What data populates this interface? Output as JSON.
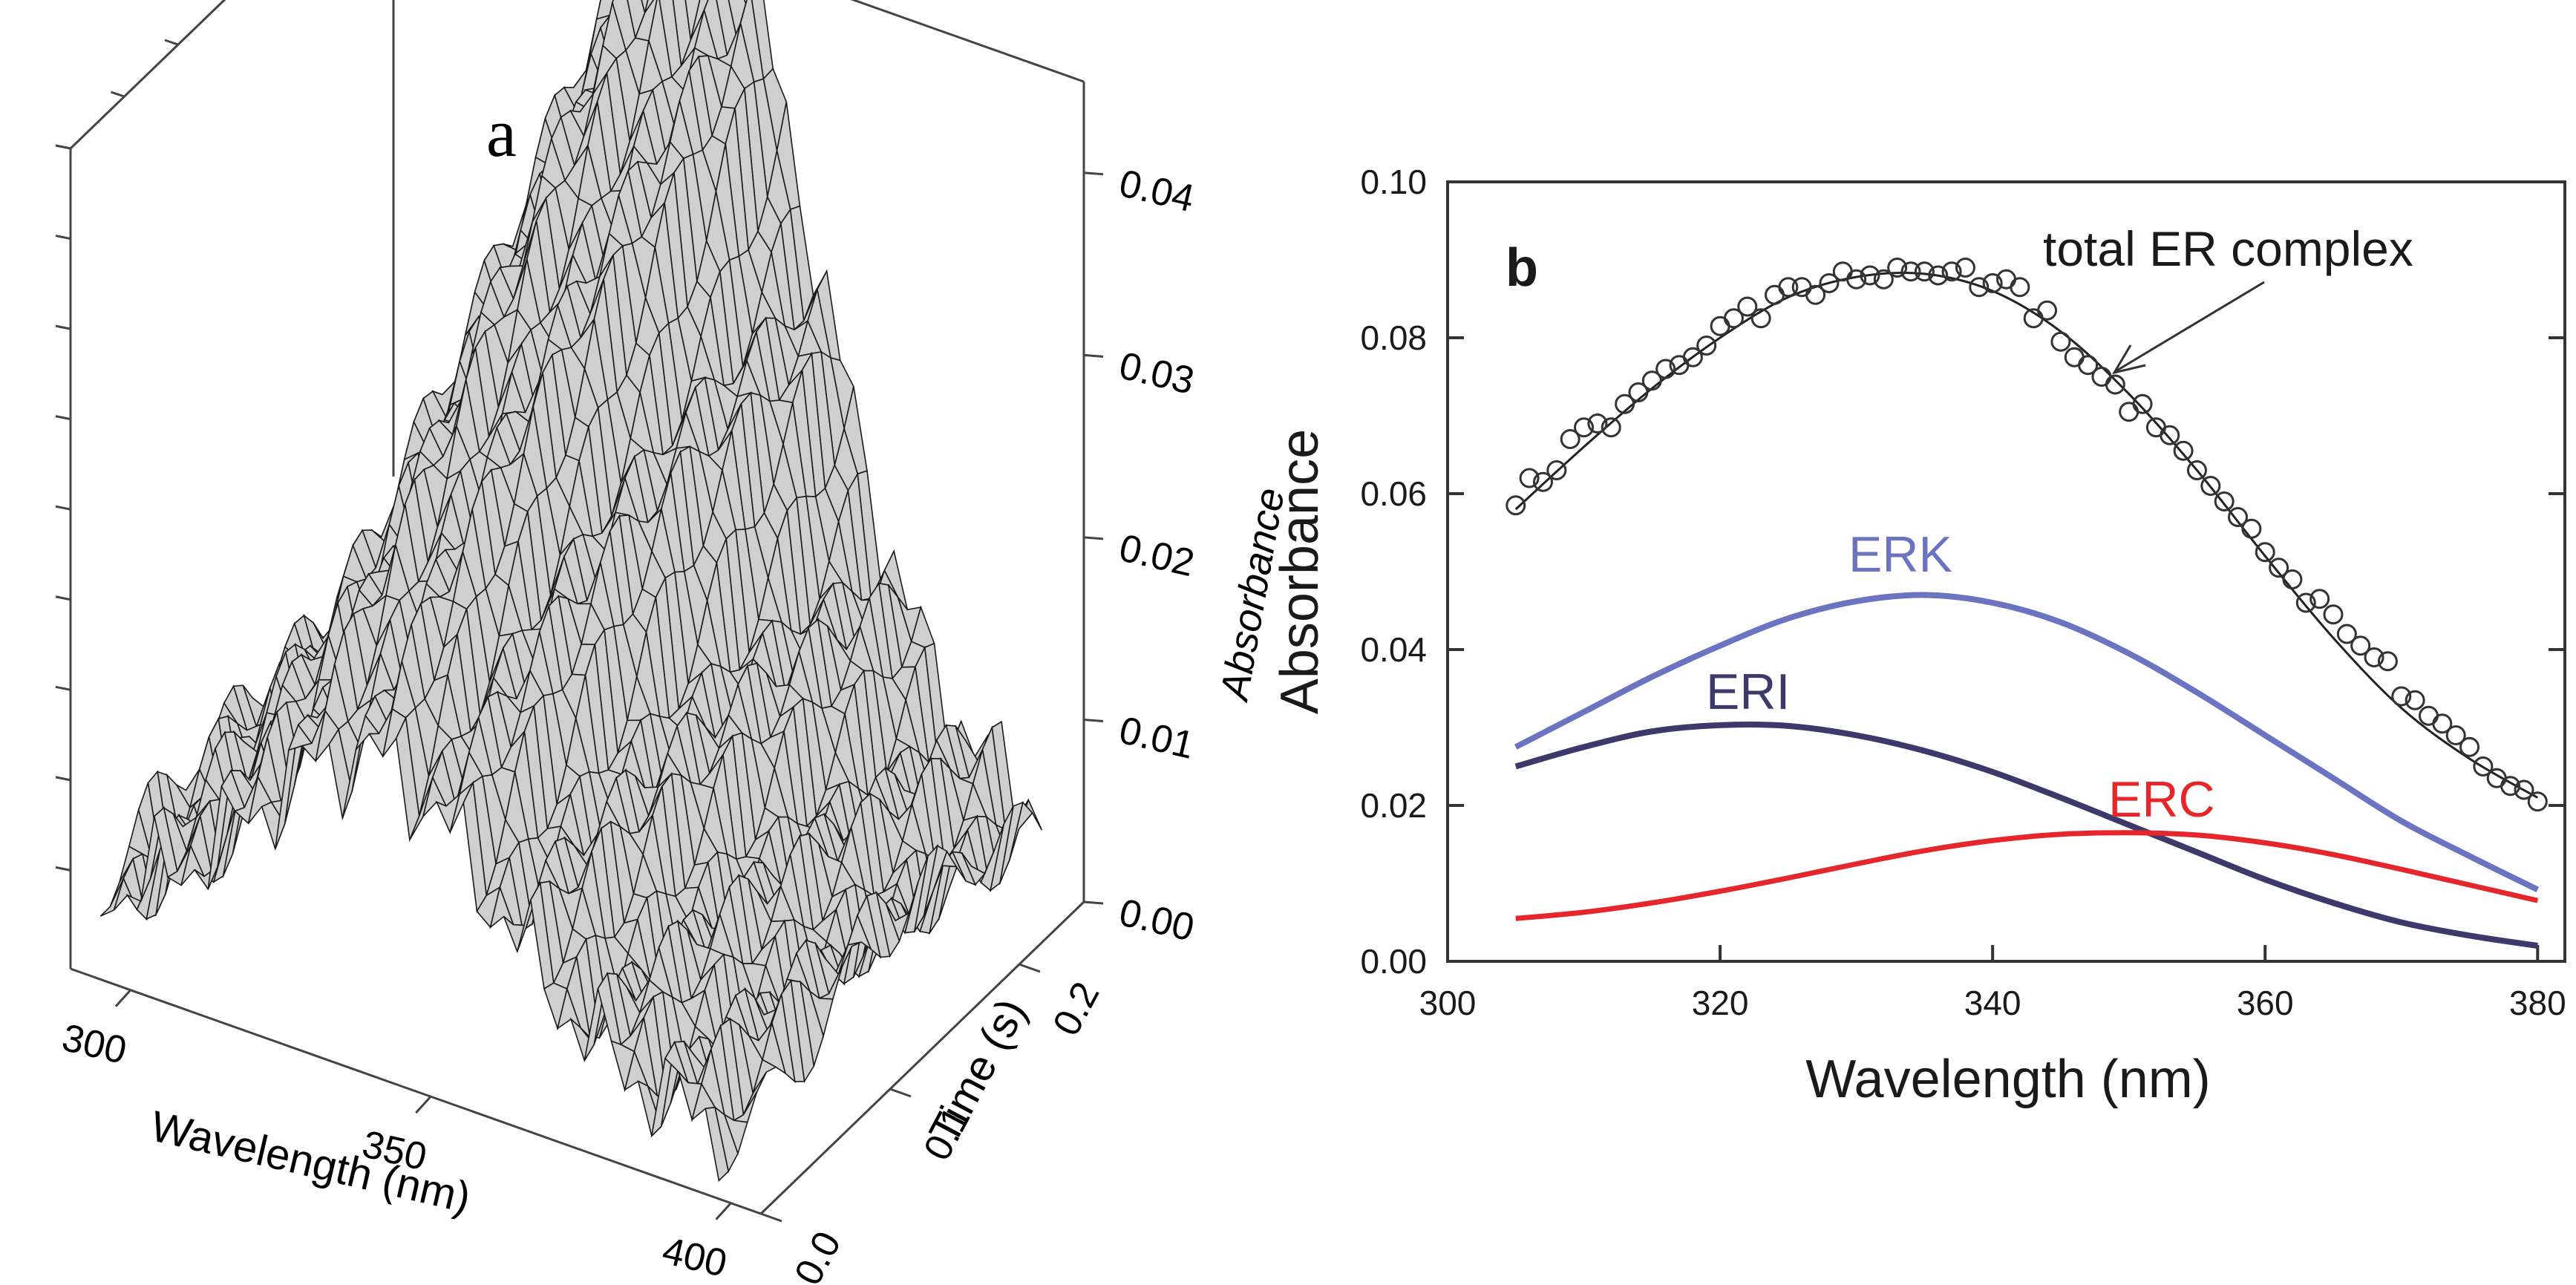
{
  "chart_data": [
    {
      "panel_label": "a",
      "type": "surface3d",
      "description_axes": {
        "xlabel": "Wavelength (nm)",
        "ylabel": "Time (s)",
        "zlabel": "Absorbance"
      },
      "x_ticks": [
        "300",
        "350",
        "400"
      ],
      "y_ticks": [
        "0.0",
        "0.1",
        "0.2"
      ],
      "z_ticks": [
        "0.00",
        "0.01",
        "0.02",
        "0.03",
        "0.04"
      ],
      "xlim": [
        290,
        405
      ],
      "ylim": [
        0,
        0.25
      ],
      "zlim": [
        0,
        0.045
      ],
      "surface": {
        "wavelengths": [
          295,
          305,
          315,
          325,
          335,
          345,
          355,
          365,
          375,
          385,
          395
        ],
        "times": [
          0.0,
          0.02,
          0.04,
          0.06,
          0.08,
          0.1,
          0.12,
          0.14,
          0.16,
          0.18,
          0.2,
          0.22,
          0.24
        ],
        "peak_absorbance": [
          0.012,
          0.018,
          0.025,
          0.031,
          0.038,
          0.044,
          0.043,
          0.036,
          0.027,
          0.018,
          0.01
        ]
      }
    },
    {
      "panel_label": "b",
      "type": "line",
      "xlabel": "Wavelength (nm)",
      "ylabel": "Absorbance",
      "xlim": [
        300,
        382
      ],
      "ylim": [
        0,
        0.1
      ],
      "x_ticks": [
        300,
        320,
        340,
        360,
        380
      ],
      "y_ticks": [
        0.0,
        0.02,
        0.04,
        0.06,
        0.08,
        0.1
      ],
      "y_tick_labels": [
        "0.00",
        "0.02",
        "0.04",
        "0.06",
        "0.08",
        "0.10"
      ],
      "annotation": "total ER complex",
      "series": [
        {
          "name": "ERK",
          "color": "#6b74c0",
          "x": [
            305,
            310,
            315,
            320,
            325,
            330,
            335,
            340,
            345,
            350,
            355,
            360,
            365,
            370,
            375,
            380
          ],
          "values": [
            0.0275,
            0.032,
            0.0365,
            0.0405,
            0.044,
            0.0462,
            0.047,
            0.046,
            0.0435,
            0.0395,
            0.0345,
            0.029,
            0.0235,
            0.018,
            0.0135,
            0.0092
          ]
        },
        {
          "name": "ERI",
          "color": "#3d3a6b",
          "x": [
            305,
            310,
            315,
            320,
            325,
            330,
            335,
            340,
            345,
            350,
            355,
            360,
            365,
            370,
            375,
            380
          ],
          "values": [
            0.025,
            0.0275,
            0.0295,
            0.0303,
            0.0302,
            0.029,
            0.027,
            0.0243,
            0.021,
            0.0175,
            0.014,
            0.0105,
            0.0075,
            0.005,
            0.0033,
            0.002
          ]
        },
        {
          "name": "ERC",
          "color": "#e5262a",
          "x": [
            305,
            310,
            315,
            320,
            325,
            330,
            335,
            340,
            345,
            350,
            355,
            360,
            365,
            370,
            375,
            380
          ],
          "values": [
            0.0055,
            0.0063,
            0.0075,
            0.009,
            0.0107,
            0.0125,
            0.0142,
            0.0155,
            0.0163,
            0.0165,
            0.0162,
            0.0152,
            0.0137,
            0.0118,
            0.0098,
            0.0078
          ]
        },
        {
          "name": "total ER complex (fit)",
          "color": "#222222",
          "x": [
            305,
            310,
            315,
            320,
            325,
            330,
            335,
            340,
            345,
            350,
            355,
            360,
            365,
            370,
            375,
            380
          ],
          "values": [
            0.058,
            0.066,
            0.0735,
            0.08,
            0.0852,
            0.0878,
            0.0882,
            0.086,
            0.0808,
            0.0728,
            0.063,
            0.052,
            0.0415,
            0.0325,
            0.026,
            0.021
          ]
        },
        {
          "name": "total ER complex (data)",
          "marker": "open-circle",
          "x": [
            305,
            306,
            307,
            308,
            309,
            310,
            311,
            312,
            313,
            314,
            315,
            316,
            317,
            318,
            319,
            320,
            321,
            322,
            323,
            324,
            325,
            326,
            327,
            328,
            329,
            330,
            331,
            332,
            333,
            334,
            335,
            336,
            337,
            338,
            339,
            340,
            341,
            342,
            343,
            344,
            345,
            346,
            347,
            348,
            349,
            350,
            351,
            352,
            353,
            354,
            355,
            356,
            357,
            358,
            359,
            360,
            361,
            362,
            363,
            364,
            365,
            366,
            367,
            368,
            369,
            370,
            371,
            372,
            373,
            374,
            375,
            376,
            377,
            378,
            379,
            380
          ],
          "values": [
            0.0585,
            0.062,
            0.0615,
            0.063,
            0.067,
            0.0685,
            0.069,
            0.0685,
            0.0715,
            0.073,
            0.0745,
            0.076,
            0.0765,
            0.0775,
            0.079,
            0.0815,
            0.0825,
            0.084,
            0.0825,
            0.0855,
            0.0865,
            0.0865,
            0.0855,
            0.087,
            0.0885,
            0.0875,
            0.088,
            0.0875,
            0.089,
            0.0885,
            0.0885,
            0.088,
            0.0885,
            0.089,
            0.0865,
            0.087,
            0.0875,
            0.0865,
            0.0825,
            0.0835,
            0.0795,
            0.0775,
            0.0765,
            0.075,
            0.074,
            0.0705,
            0.0715,
            0.0685,
            0.0675,
            0.0655,
            0.063,
            0.061,
            0.059,
            0.057,
            0.0555,
            0.0525,
            0.0505,
            0.049,
            0.046,
            0.0465,
            0.0445,
            0.042,
            0.0405,
            0.039,
            0.0385,
            0.034,
            0.0335,
            0.0315,
            0.0305,
            0.029,
            0.0275,
            0.025,
            0.0235,
            0.0225,
            0.022,
            0.0205
          ]
        }
      ]
    }
  ]
}
